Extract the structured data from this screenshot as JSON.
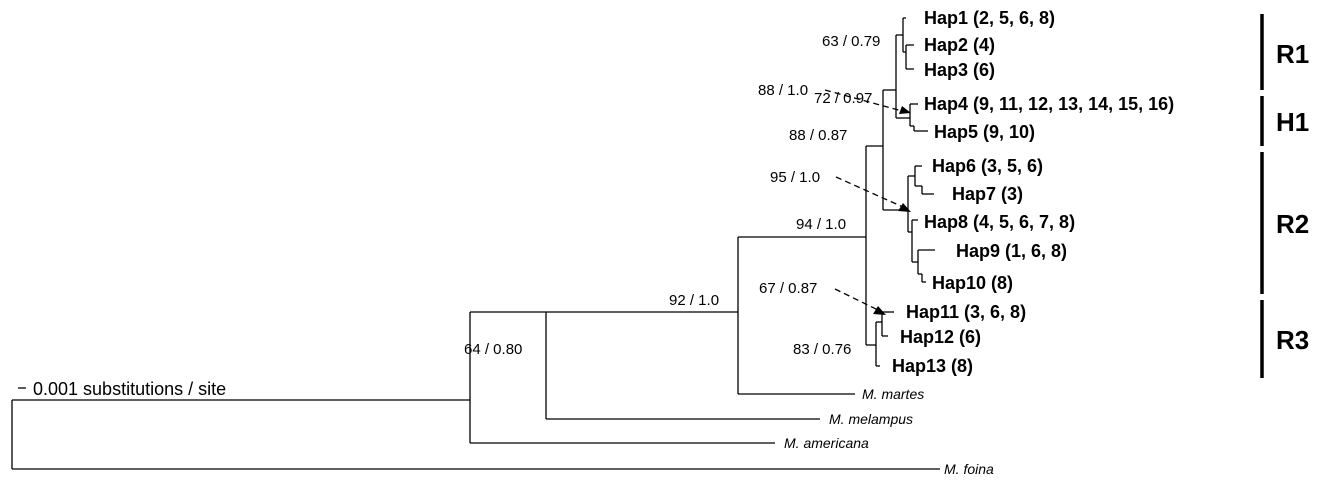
{
  "scale_label": "0.001 substitutions / site",
  "haplotypes": [
    "Hap1 (2, 5, 6, 8)",
    "Hap2 (4)",
    "Hap3 (6)",
    "Hap4 (9, 11, 12, 13, 14, 15, 16)",
    "Hap5 (9, 10)",
    "Hap6 (3, 5, 6)",
    "Hap7 (3)",
    "Hap8 (4, 5, 6, 7, 8)",
    "Hap9 (1, 6, 8)",
    "Hap10 (8)",
    "Hap11 (3, 6, 8)",
    "Hap12 (6)",
    "Hap13 (8)"
  ],
  "outgroups": [
    "M. martes",
    "M. melampus",
    "M. americana",
    "M. foina"
  ],
  "support_values": [
    "63 / 0.79",
    "72 / 0.97",
    "88 / 1.0",
    "88 / 0.87",
    "95 / 1.0",
    "94 / 1.0",
    "67 / 0.87",
    "92 / 1.0",
    "83 / 0.76",
    "64 / 0.80"
  ],
  "clades": [
    "R1",
    "H1",
    "R2",
    "R3"
  ]
}
